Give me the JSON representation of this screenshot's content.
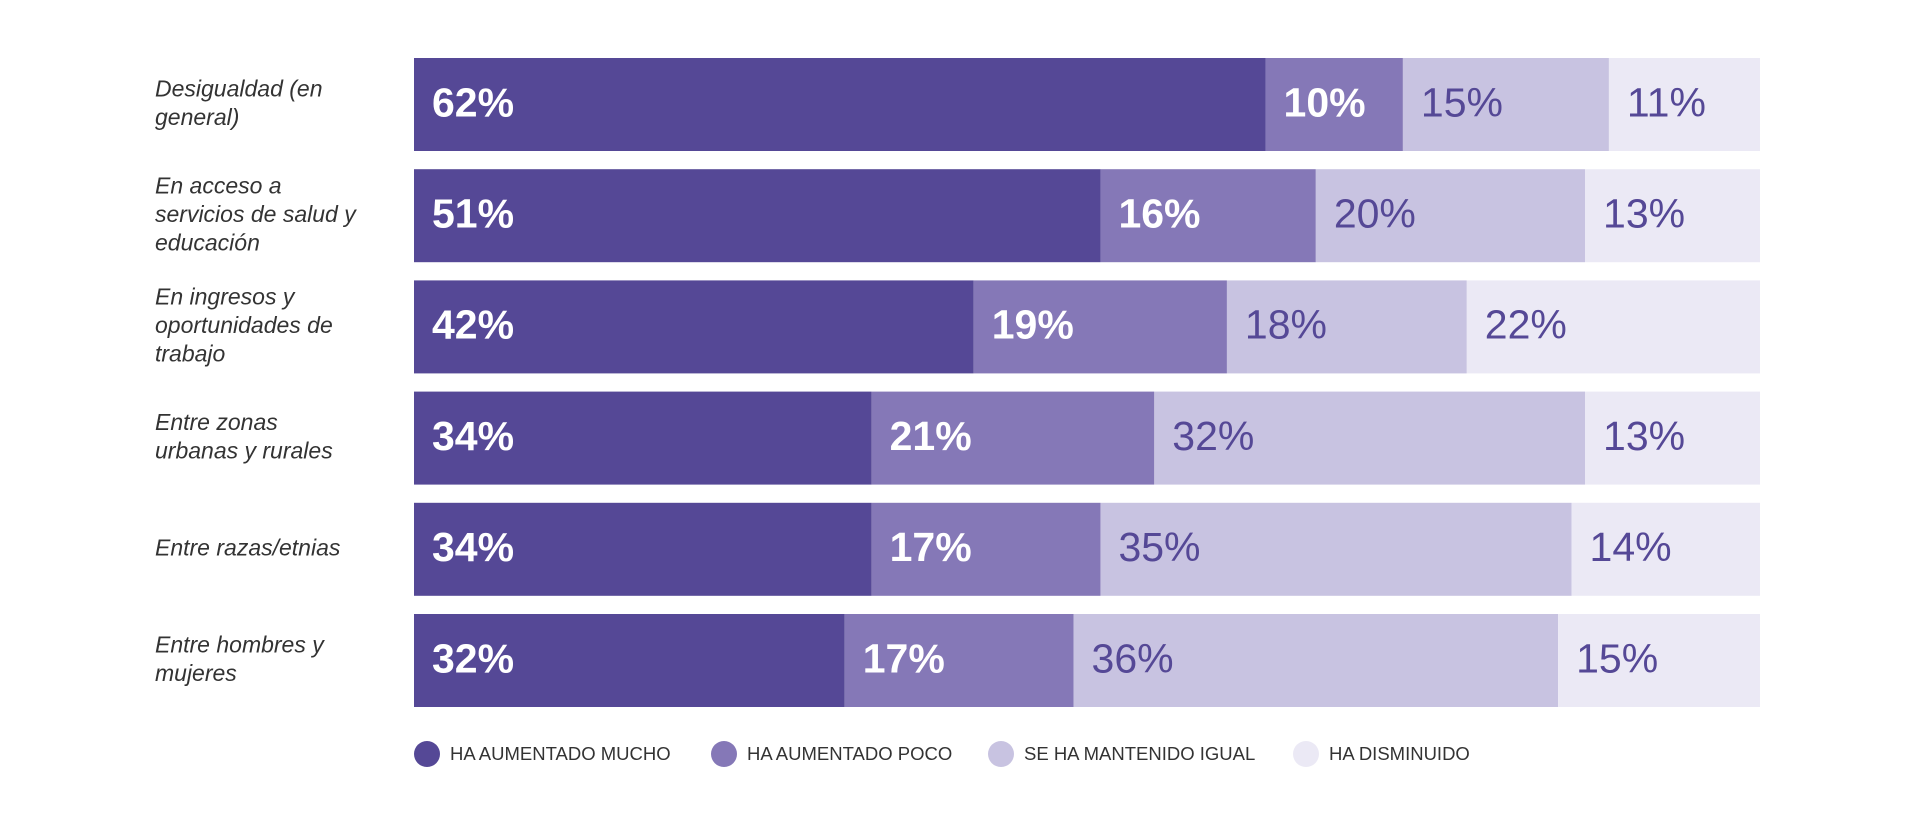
{
  "chart_data": {
    "type": "bar",
    "orientation": "horizontal",
    "stacked": true,
    "percent": true,
    "categories": [
      [
        "Desigualdad (en",
        "general)"
      ],
      [
        "En acceso a",
        "servicios de salud y",
        "educación"
      ],
      [
        "En ingresos y",
        "oportunidades de",
        "trabajo"
      ],
      [
        "Entre zonas",
        "urbanas y rurales"
      ],
      [
        "Entre razas/etnias"
      ],
      [
        "Entre hombres y",
        "mujeres"
      ]
    ],
    "series": [
      {
        "name": "HA AUMENTADO MUCHO",
        "color": "#554896",
        "label_color": "#ffffff",
        "label_weight": "bold",
        "values": [
          62,
          51,
          42,
          34,
          34,
          32
        ]
      },
      {
        "name": "HA AUMENTADO POCO",
        "color": "#8578b7",
        "label_color": "#ffffff",
        "label_weight": "bold",
        "values": [
          10,
          16,
          19,
          21,
          17,
          17
        ]
      },
      {
        "name": "SE HA MANTENIDO IGUAL",
        "color": "#c8c3e1",
        "label_color": "#554896",
        "label_weight": "normal",
        "values": [
          15,
          20,
          18,
          32,
          35,
          36
        ]
      },
      {
        "name": "HA DISMINUIDO",
        "color": "#ebe9f5",
        "label_color": "#554896",
        "label_weight": "normal",
        "values": [
          11,
          13,
          22,
          13,
          14,
          15
        ]
      }
    ],
    "value_suffix": "%",
    "legend_position": "bottom-left",
    "grid": false
  }
}
